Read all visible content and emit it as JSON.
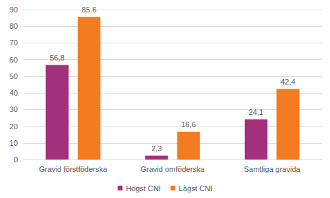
{
  "chart_data": {
    "type": "bar",
    "categories": [
      "Gravid förstföderska",
      "Gravid omföderska",
      "Samtliga gravida"
    ],
    "series": [
      {
        "name": "Högst CNI",
        "color": "#a3307c",
        "values": [
          56.8,
          2.3,
          24.1
        ],
        "value_labels": [
          "56,8",
          "2,3",
          "24,1"
        ]
      },
      {
        "name": "Lägst CNI",
        "color": "#f47b20",
        "values": [
          85.6,
          16.6,
          42.4
        ],
        "value_labels": [
          "85,6",
          "16,6",
          "42,4"
        ]
      }
    ],
    "ylim": [
      0,
      90
    ],
    "yticks": [
      0,
      10,
      20,
      30,
      40,
      50,
      60,
      70,
      80,
      90
    ],
    "grid": true,
    "legend": "bottom",
    "data_labels": true
  }
}
